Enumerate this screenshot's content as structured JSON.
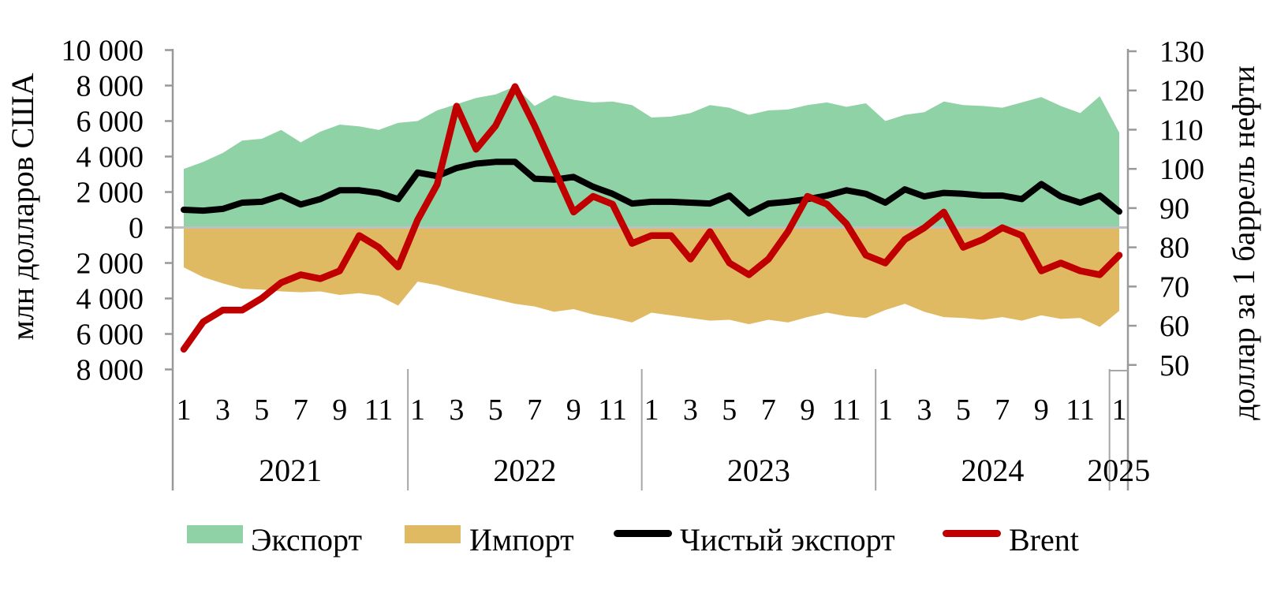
{
  "chart_data": {
    "type": "area",
    "description": "Monthly trade combo chart: export/import areas and net-export line on left axis (mln USD), Brent oil price line on right axis (USD per barrel)",
    "months": [
      "2021-01",
      "2021-02",
      "2021-03",
      "2021-04",
      "2021-05",
      "2021-06",
      "2021-07",
      "2021-08",
      "2021-09",
      "2021-10",
      "2021-11",
      "2021-12",
      "2022-01",
      "2022-02",
      "2022-03",
      "2022-04",
      "2022-05",
      "2022-06",
      "2022-07",
      "2022-08",
      "2022-09",
      "2022-10",
      "2022-11",
      "2022-12",
      "2023-01",
      "2023-02",
      "2023-03",
      "2023-04",
      "2023-05",
      "2023-06",
      "2023-07",
      "2023-08",
      "2023-09",
      "2023-10",
      "2023-11",
      "2023-12",
      "2024-01",
      "2024-02",
      "2024-03",
      "2024-04",
      "2024-05",
      "2024-06",
      "2024-07",
      "2024-08",
      "2024-09",
      "2024-10",
      "2024-11",
      "2024-12",
      "2025-01"
    ],
    "x_axis": {
      "years": [
        "2021",
        "2022",
        "2023",
        "2024",
        "2025"
      ],
      "months_per_year": [
        12,
        12,
        12,
        12,
        1
      ],
      "month_tick_labels": [
        "1",
        "3",
        "5",
        "7",
        "9",
        "11"
      ]
    },
    "left_axis": {
      "title": "млн долларов США",
      "range": [
        -8000,
        10000
      ],
      "tick_values": [
        10000,
        8000,
        6000,
        4000,
        2000,
        0,
        -2000,
        -4000,
        -6000,
        -8000
      ],
      "tick_labels": [
        "10 000",
        "8 000",
        "6 000",
        "4 000",
        "2 000",
        "0",
        "2 000",
        "4 000",
        "6 000",
        "8 000"
      ]
    },
    "right_axis": {
      "title": "доллар за 1 баррель нефти",
      "range": [
        50,
        130
      ],
      "tick_values": [
        130,
        120,
        110,
        100,
        90,
        80,
        70,
        60,
        50
      ],
      "tick_labels": [
        "130",
        "120",
        "110",
        "100",
        "90",
        "80",
        "70",
        "60",
        "50"
      ]
    },
    "series": [
      {
        "name": "Экспорт",
        "type": "area",
        "axis": "left",
        "color": "#8FD2A5",
        "values": [
          3300,
          3700,
          4200,
          4900,
          5000,
          5500,
          4800,
          5400,
          5800,
          5700,
          5500,
          5900,
          6000,
          6600,
          6950,
          7300,
          7500,
          7950,
          6850,
          7450,
          7200,
          7050,
          7100,
          6900,
          6200,
          6250,
          6450,
          6900,
          6750,
          6350,
          6600,
          6650,
          6900,
          7050,
          6800,
          7000,
          6000,
          6350,
          6500,
          7100,
          6900,
          6850,
          6750,
          7050,
          7350,
          6850,
          6450,
          7400,
          5350
        ]
      },
      {
        "name": "Импорт",
        "type": "area",
        "axis": "left",
        "color": "#DFBA62",
        "values": [
          -2250,
          -2800,
          -3150,
          -3450,
          -3500,
          -3600,
          -3650,
          -3600,
          -3800,
          -3700,
          -3850,
          -4400,
          -3050,
          -3250,
          -3550,
          -3800,
          -4050,
          -4300,
          -4450,
          -4750,
          -4600,
          -4900,
          -5100,
          -5350,
          -4800,
          -4950,
          -5100,
          -5250,
          -5200,
          -5450,
          -5200,
          -5350,
          -5050,
          -4800,
          -5000,
          -5100,
          -4650,
          -4300,
          -4750,
          -5050,
          -5100,
          -5200,
          -5050,
          -5250,
          -4950,
          -5150,
          -5100,
          -5600,
          -4700
        ]
      },
      {
        "name": "Чистый экспорт",
        "type": "line",
        "axis": "left",
        "color": "#000000",
        "stroke_width": 8,
        "values": [
          1000,
          950,
          1050,
          1400,
          1450,
          1800,
          1300,
          1600,
          2100,
          2100,
          1950,
          1600,
          3100,
          2900,
          3350,
          3600,
          3700,
          3700,
          2750,
          2700,
          2850,
          2300,
          1900,
          1350,
          1450,
          1450,
          1400,
          1350,
          1800,
          800,
          1350,
          1450,
          1600,
          1800,
          2100,
          1900,
          1400,
          2150,
          1750,
          1950,
          1900,
          1800,
          1800,
          1600,
          2450,
          1750,
          1400,
          1800,
          900
        ]
      },
      {
        "name": "Brent",
        "type": "line",
        "axis": "right",
        "color": "#C00000",
        "stroke_width": 8.5,
        "values": [
          54,
          61,
          64,
          64,
          67,
          71,
          73,
          72,
          74,
          83,
          80,
          75,
          87,
          96,
          116,
          105,
          111,
          121,
          111,
          100,
          89,
          93,
          91,
          81,
          83,
          83,
          77,
          84,
          76,
          73,
          77,
          84,
          93,
          91,
          86,
          78,
          76,
          82,
          85,
          89,
          80,
          82,
          85,
          83,
          74,
          76,
          74,
          73,
          78
        ]
      }
    ],
    "legend": {
      "position": "bottom",
      "items": [
        {
          "label": "Экспорт",
          "swatch": "box",
          "color": "#8FD2A5"
        },
        {
          "label": "Импорт",
          "swatch": "box",
          "color": "#DFBA62"
        },
        {
          "label": "Чистый экспорт",
          "swatch": "line",
          "color": "#000000"
        },
        {
          "label": "Brent",
          "swatch": "line",
          "color": "#C00000"
        }
      ]
    },
    "grid": {
      "zero_line": true,
      "zero_line_color": "#BFBFBF",
      "year_separators": true,
      "separator_color": "#A6A6A6",
      "axis_line_color": "#999999"
    }
  }
}
